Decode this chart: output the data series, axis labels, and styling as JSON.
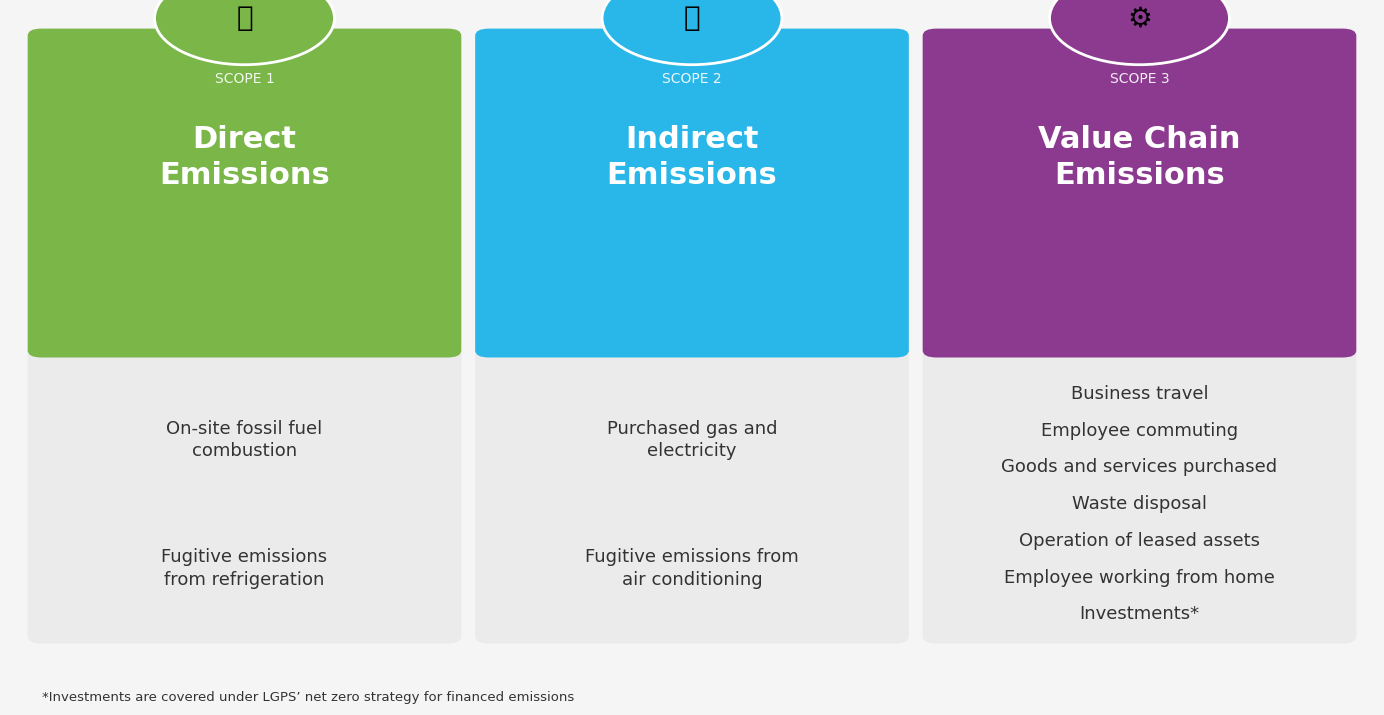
{
  "bg_color": "#f0f0f0",
  "card_bg_color": "#e8e8e8",
  "scopes": [
    {
      "scope_label": "SCOPE 1",
      "title": "Direct\nEmissions",
      "color": "#7ab648",
      "icon_color": "#7ab648",
      "items": [
        "On-site fossil fuel\ncombustion",
        "Fugitive emissions\nfrom refrigeration"
      ]
    },
    {
      "scope_label": "SCOPE 2",
      "title": "Indirect\nEmissions",
      "color": "#29b6e8",
      "icon_color": "#29b6e8",
      "items": [
        "Purchased gas and\nelectricity",
        "Fugitive emissions from\nair conditioning"
      ]
    },
    {
      "scope_label": "SCOPE 3",
      "title": "Value Chain\nEmissions",
      "color": "#8b3a8f",
      "icon_color": "#8b3a8f",
      "items": [
        "Business travel",
        "Employee commuting",
        "Goods and services purchased",
        "Waste disposal",
        "Operation of leased assets",
        "Employee working from home",
        "Investments*"
      ]
    }
  ],
  "footnote": "*Investments are covered under LGPS’ net zero strategy for financed emissions",
  "footnote_fontsize": 9.5,
  "scope_label_fontsize": 10,
  "title_fontsize": 22,
  "item_fontsize": 13
}
